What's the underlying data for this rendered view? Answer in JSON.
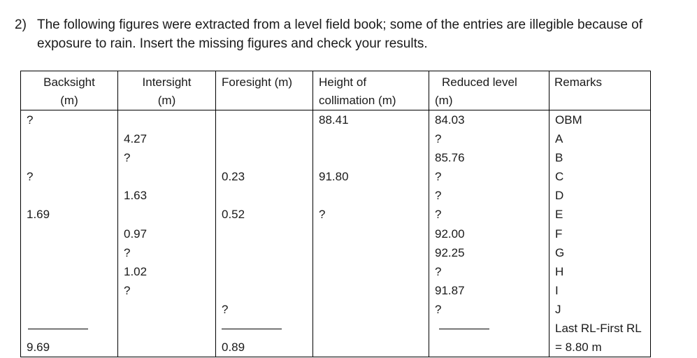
{
  "question": {
    "number": "2)",
    "text": "The following figures were extracted from a level field book; some of the entries are illegible because of exposure to rain. Insert the missing figures and check your results."
  },
  "table": {
    "headers": {
      "backsight": [
        "Backsight",
        "(m)"
      ],
      "intersight": [
        "Intersight",
        "(m)"
      ],
      "foresight": "Foresight (m)",
      "hoc": [
        "Height of",
        "collimation (m)"
      ],
      "rl": [
        "Reduced level",
        "(m)"
      ],
      "remarks": "Remarks"
    },
    "rows": [
      {
        "bs": "?",
        "is": "",
        "fs": "",
        "hoc": "88.41",
        "rl": "84.03",
        "remark": "OBM"
      },
      {
        "bs": "",
        "is": "4.27",
        "fs": "",
        "hoc": "",
        "rl": "?",
        "remark": "A"
      },
      {
        "bs": "",
        "is": "?",
        "fs": "",
        "hoc": "",
        "rl": "85.76",
        "remark": "B"
      },
      {
        "bs": "?",
        "is": "",
        "fs": "0.23",
        "hoc": "91.80",
        "rl": "?",
        "remark": "C"
      },
      {
        "bs": "",
        "is": "1.63",
        "fs": "",
        "hoc": "",
        "rl": "?",
        "remark": "D"
      },
      {
        "bs": "1.69",
        "is": "",
        "fs": "0.52",
        "hoc": "?",
        "rl": "?",
        "remark": "E"
      },
      {
        "bs": "",
        "is": "0.97",
        "fs": "",
        "hoc": "",
        "rl": "92.00",
        "remark": "F"
      },
      {
        "bs": "",
        "is": "?",
        "fs": "",
        "hoc": "",
        "rl": "92.25",
        "remark": "G"
      },
      {
        "bs": "",
        "is": "1.02",
        "fs": "",
        "hoc": "",
        "rl": "?",
        "remark": "H"
      },
      {
        "bs": "",
        "is": "?",
        "fs": "",
        "hoc": "",
        "rl": "91.87",
        "remark": "I"
      },
      {
        "bs": "",
        "is": "",
        "fs": "?",
        "hoc": "",
        "rl": "?",
        "remark": "J"
      }
    ],
    "check_row": {
      "remark": "Last RL-First RL"
    },
    "totals_row": {
      "bs": "9.69",
      "fs": "0.89",
      "remark": "= 8.80 m"
    }
  }
}
